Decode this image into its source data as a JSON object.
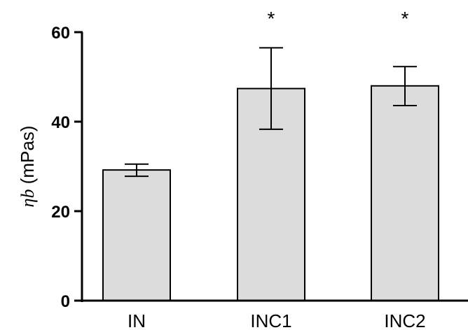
{
  "chart_data": {
    "type": "bar",
    "title": "",
    "xlabel": "",
    "ylabel": {
      "symbol": "ηb",
      "unit": " (mPas)"
    },
    "ylim": [
      0,
      60
    ],
    "yticks": [
      "0",
      "20",
      "40",
      "60"
    ],
    "categories": [
      "IN",
      "INC1",
      "INC2"
    ],
    "values": [
      29.2,
      47.4,
      48.0
    ],
    "error_low": [
      27.8,
      38.3,
      43.6
    ],
    "error_high": [
      30.5,
      56.5,
      52.3
    ],
    "significance": [
      "",
      "*",
      "*"
    ],
    "bar_color": "#dcdcdc",
    "grid": false,
    "legend": "none"
  }
}
